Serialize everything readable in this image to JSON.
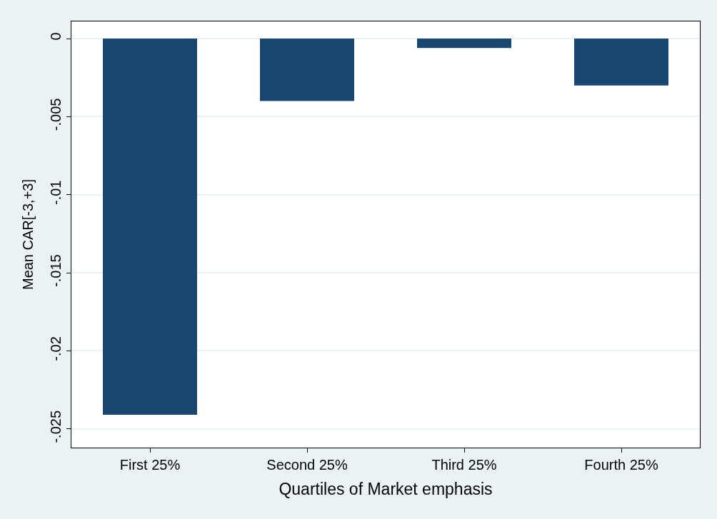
{
  "chart_data": {
    "type": "bar",
    "xlabel": "Quartiles of Market emphasis",
    "ylabel": "Mean CAR[-3,+3]",
    "categories": [
      "First 25%",
      "Second 25%",
      "Third 25%",
      "Fourth 25%"
    ],
    "values": [
      -0.0241,
      -0.004,
      -0.0006,
      -0.003
    ],
    "color": "#1a476f",
    "ylim": [
      -0.0262,
      0.0011
    ],
    "yticks": [
      {
        "value": 0,
        "label": "0"
      },
      {
        "value": -0.005,
        "label": "-.005"
      },
      {
        "value": -0.01,
        "label": "-.01"
      },
      {
        "value": -0.015,
        "label": "-.015"
      },
      {
        "value": -0.02,
        "label": "-.02"
      },
      {
        "value": -0.025,
        "label": "-.025"
      }
    ],
    "grid": "y"
  }
}
